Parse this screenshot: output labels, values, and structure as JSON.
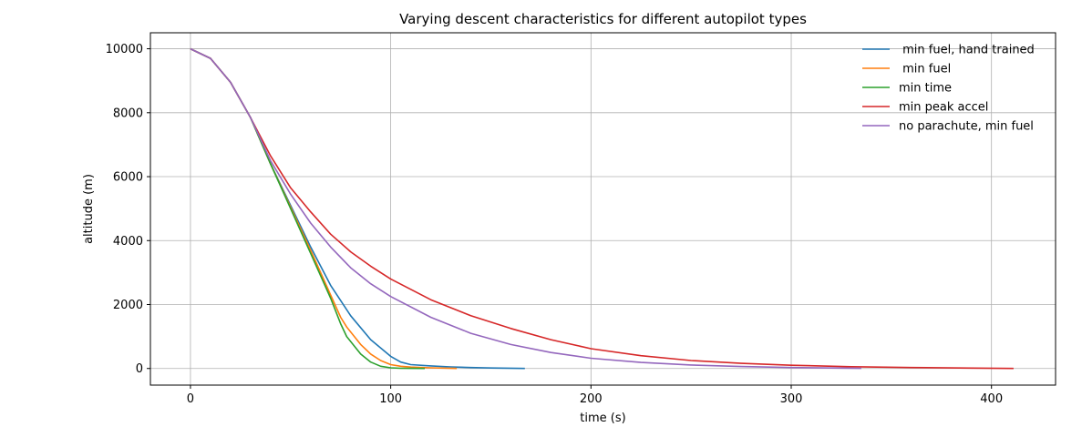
{
  "chart_data": {
    "type": "line",
    "title": "Varying descent characteristics for different autopilot types",
    "xlabel": "time (s)",
    "ylabel": "altitude (m)",
    "xlim": [
      -20,
      432
    ],
    "ylim": [
      -520,
      10500
    ],
    "xticks": [
      0,
      100,
      200,
      300,
      400
    ],
    "yticks": [
      0,
      2000,
      4000,
      6000,
      8000,
      10000
    ],
    "grid": true,
    "legend_position": "top-right",
    "series": [
      {
        "name": " min fuel, hand trained",
        "color": "#1f77b4",
        "x": [
          0,
          10,
          20,
          30,
          40,
          50,
          60,
          70,
          80,
          90,
          100,
          105,
          110,
          120,
          130,
          140,
          150,
          167
        ],
        "y": [
          10000,
          9700,
          8950,
          7850,
          6400,
          5100,
          3800,
          2600,
          1650,
          900,
          380,
          200,
          120,
          80,
          50,
          30,
          15,
          0
        ]
      },
      {
        "name": " min fuel",
        "color": "#ff7f0e",
        "x": [
          0,
          10,
          20,
          30,
          40,
          50,
          60,
          70,
          75,
          78,
          85,
          90,
          95,
          100,
          105,
          110,
          120,
          133
        ],
        "y": [
          10000,
          9700,
          8950,
          7850,
          6400,
          5050,
          3700,
          2300,
          1600,
          1300,
          750,
          450,
          250,
          120,
          70,
          45,
          20,
          0
        ]
      },
      {
        "name": "min time",
        "color": "#2ca02c",
        "x": [
          0,
          10,
          20,
          30,
          40,
          50,
          60,
          70,
          75,
          78,
          85,
          90,
          95,
          100,
          105,
          110,
          117
        ],
        "y": [
          10000,
          9700,
          8950,
          7850,
          6400,
          5000,
          3600,
          2200,
          1400,
          1000,
          450,
          200,
          70,
          20,
          8,
          3,
          0
        ]
      },
      {
        "name": "min peak accel",
        "color": "#d62728",
        "x": [
          0,
          10,
          20,
          30,
          40,
          50,
          60,
          70,
          80,
          90,
          100,
          120,
          140,
          160,
          180,
          200,
          225,
          250,
          275,
          300,
          330,
          360,
          390,
          411
        ],
        "y": [
          10000,
          9700,
          8950,
          7850,
          6650,
          5650,
          4900,
          4200,
          3650,
          3200,
          2800,
          2150,
          1650,
          1250,
          900,
          620,
          400,
          250,
          160,
          100,
          55,
          30,
          12,
          0
        ]
      },
      {
        "name": "no parachute, min fuel",
        "color": "#9467bd",
        "x": [
          0,
          10,
          20,
          30,
          40,
          50,
          60,
          70,
          80,
          90,
          100,
          120,
          140,
          160,
          180,
          200,
          225,
          250,
          275,
          300,
          320,
          335
        ],
        "y": [
          10000,
          9700,
          8950,
          7850,
          6500,
          5450,
          4550,
          3800,
          3150,
          2650,
          2250,
          1600,
          1100,
          750,
          500,
          320,
          190,
          110,
          60,
          30,
          15,
          5
        ]
      }
    ]
  }
}
